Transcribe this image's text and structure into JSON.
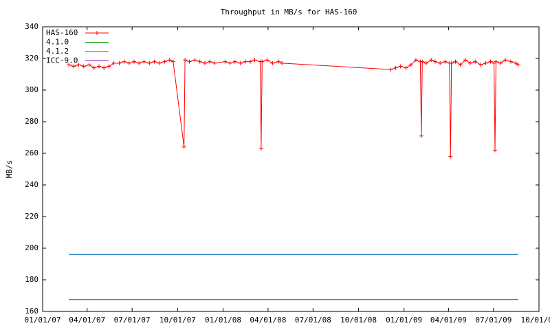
{
  "chart_data": {
    "type": "line",
    "title": "Throughput in MB/s for HAS-160",
    "y_label": "MB/s",
    "xlim": [
      "2007-01-01",
      "2009-10-01"
    ],
    "xticks": [
      {
        "value": "2007-01-01",
        "label": "01/01/07"
      },
      {
        "value": "2007-04-01",
        "label": "04/01/07"
      },
      {
        "value": "2007-07-01",
        "label": "07/01/07"
      },
      {
        "value": "2007-10-01",
        "label": "10/01/07"
      },
      {
        "value": "2008-01-01",
        "label": "01/01/08"
      },
      {
        "value": "2008-04-01",
        "label": "04/01/08"
      },
      {
        "value": "2008-07-01",
        "label": "07/01/08"
      },
      {
        "value": "2008-10-01",
        "label": "10/01/08"
      },
      {
        "value": "2009-01-01",
        "label": "01/01/09"
      },
      {
        "value": "2009-04-01",
        "label": "04/01/09"
      },
      {
        "value": "2009-07-01",
        "label": "07/01/09"
      },
      {
        "value": "2009-10-01",
        "label": "10/01/09"
      }
    ],
    "ylim": [
      160,
      340
    ],
    "yticks": [
      160,
      180,
      200,
      220,
      240,
      260,
      280,
      300,
      320,
      340
    ],
    "legend": "top-left",
    "series": [
      {
        "name": "HAS-160",
        "color": "#ff0000",
        "marker": "+",
        "x": [
          "2007-02-23",
          "2007-03-05",
          "2007-03-15",
          "2007-03-25",
          "2007-04-05",
          "2007-04-15",
          "2007-04-25",
          "2007-05-05",
          "2007-05-15",
          "2007-05-25",
          "2007-06-05",
          "2007-06-15",
          "2007-06-25",
          "2007-07-05",
          "2007-07-15",
          "2007-07-25",
          "2007-08-05",
          "2007-08-15",
          "2007-08-25",
          "2007-09-05",
          "2007-09-15",
          "2007-09-22",
          "2007-10-14",
          "2007-10-16",
          "2007-10-25",
          "2007-11-05",
          "2007-11-15",
          "2007-11-25",
          "2007-12-05",
          "2007-12-15",
          "2008-01-05",
          "2008-01-15",
          "2008-01-25",
          "2008-02-05",
          "2008-02-15",
          "2008-02-25",
          "2008-03-05",
          "2008-03-16",
          "2008-03-18",
          "2008-03-20",
          "2008-03-30",
          "2008-04-10",
          "2008-04-22",
          "2008-04-29",
          "2008-12-05",
          "2008-12-15",
          "2008-12-25",
          "2009-01-05",
          "2009-01-15",
          "2009-01-25",
          "2009-02-03",
          "2009-02-05",
          "2009-02-07",
          "2009-02-15",
          "2009-02-25",
          "2009-03-05",
          "2009-03-15",
          "2009-03-25",
          "2009-04-03",
          "2009-04-05",
          "2009-04-07",
          "2009-04-15",
          "2009-04-25",
          "2009-05-05",
          "2009-05-15",
          "2009-05-25",
          "2009-06-05",
          "2009-06-15",
          "2009-06-25",
          "2009-07-02",
          "2009-07-04",
          "2009-07-06",
          "2009-07-15",
          "2009-07-25",
          "2009-08-05",
          "2009-08-15",
          "2009-08-20"
        ],
        "values": [
          316,
          315,
          316,
          315,
          316,
          314,
          315,
          314,
          315,
          317,
          317,
          318,
          317,
          318,
          317,
          318,
          317,
          318,
          317,
          318,
          319,
          318,
          264,
          319,
          318,
          319,
          318,
          317,
          318,
          317,
          318,
          317,
          318,
          317,
          318,
          318,
          319,
          318,
          263,
          318,
          319,
          317,
          318,
          317,
          313,
          314,
          315,
          314,
          316,
          319,
          318,
          271,
          318,
          317,
          319,
          318,
          317,
          318,
          317,
          258,
          317,
          318,
          316,
          319,
          317,
          318,
          316,
          317,
          318,
          317,
          262,
          318,
          317,
          319,
          318,
          317,
          316
        ]
      },
      {
        "name": "4.1.0",
        "color": "#00a000",
        "x": [
          "2007-02-23",
          "2009-08-20"
        ],
        "values": [
          196,
          196
        ]
      },
      {
        "name": "4.1.2",
        "color": "#0066dd",
        "x": [
          "2007-02-23",
          "2009-08-20"
        ],
        "values": [
          196,
          196
        ]
      },
      {
        "name": "ICC-9.0",
        "color": "#9900cc",
        "x": [
          "2007-02-23",
          "2009-08-20"
        ],
        "values": [
          167.5,
          167.5
        ]
      }
    ]
  }
}
